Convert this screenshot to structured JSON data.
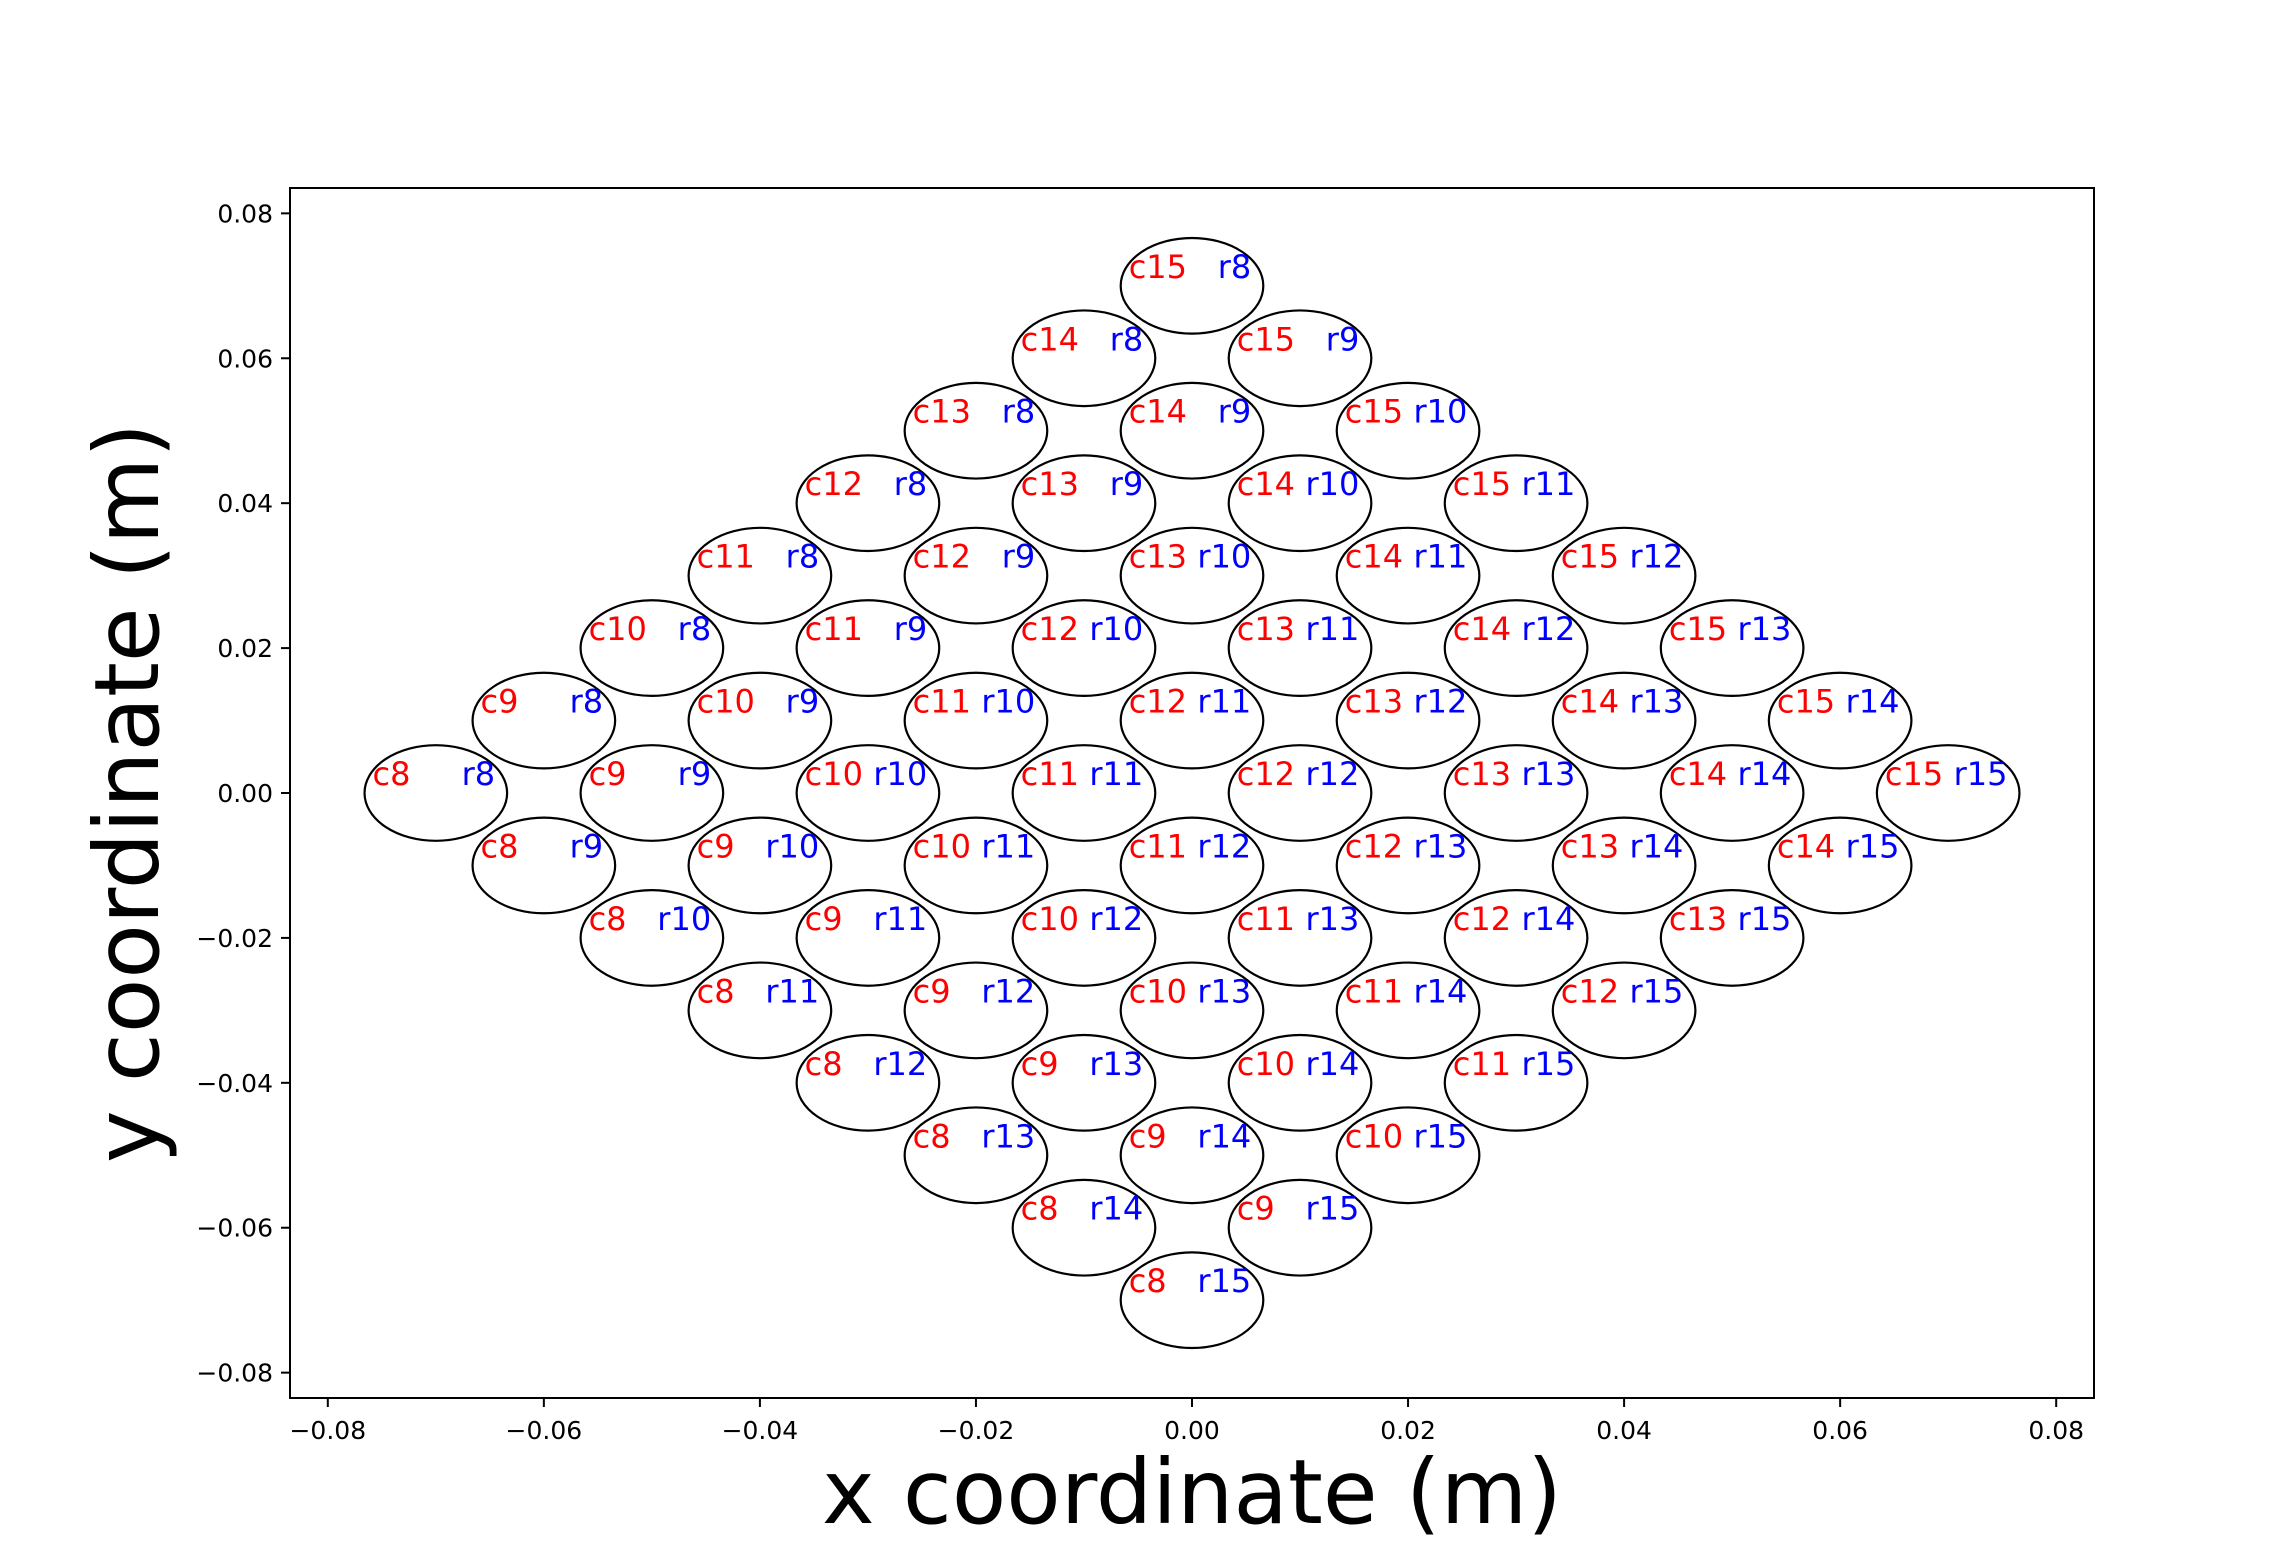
{
  "chart_data": {
    "type": "scatter",
    "title": "",
    "xlabel": "x coordinate (m)",
    "ylabel": "y coordinate (m)",
    "xlim": [
      -0.0835,
      0.0835
    ],
    "ylim": [
      -0.0835,
      0.0835
    ],
    "x_ticks": [
      -0.08,
      -0.06,
      -0.04,
      -0.02,
      0.0,
      0.02,
      0.04,
      0.06,
      0.08
    ],
    "x_tick_labels": [
      "−0.08",
      "−0.06",
      "−0.04",
      "−0.02",
      "0.00",
      "0.02",
      "0.04",
      "0.06",
      "0.08"
    ],
    "y_ticks": [
      0.08,
      0.06,
      0.04,
      0.02,
      0.0,
      -0.02,
      -0.04,
      -0.06,
      -0.08
    ],
    "y_tick_labels": [
      "0.08",
      "0.06",
      "0.04",
      "0.02",
      "0.00",
      "−0.02",
      "−0.04",
      "−0.06",
      "−0.08"
    ],
    "grid": false,
    "legend": "none",
    "cell_radius": 0.0066,
    "col_label_color": "#ff0000",
    "row_label_color": "#0000ff",
    "circle_color": "#000000",
    "cells": [
      {
        "col": "c15",
        "row": "r8",
        "x": 0.0,
        "y": 0.07
      },
      {
        "col": "c14",
        "row": "r8",
        "x": -0.01,
        "y": 0.06
      },
      {
        "col": "c15",
        "row": "r9",
        "x": 0.01,
        "y": 0.06
      },
      {
        "col": "c13",
        "row": "r8",
        "x": -0.02,
        "y": 0.05
      },
      {
        "col": "c14",
        "row": "r9",
        "x": 0.0,
        "y": 0.05
      },
      {
        "col": "c15",
        "row": "r10",
        "x": 0.02,
        "y": 0.05
      },
      {
        "col": "c12",
        "row": "r8",
        "x": -0.03,
        "y": 0.04
      },
      {
        "col": "c13",
        "row": "r9",
        "x": -0.01,
        "y": 0.04
      },
      {
        "col": "c14",
        "row": "r10",
        "x": 0.01,
        "y": 0.04
      },
      {
        "col": "c15",
        "row": "r11",
        "x": 0.03,
        "y": 0.04
      },
      {
        "col": "c11",
        "row": "r8",
        "x": -0.04,
        "y": 0.03
      },
      {
        "col": "c12",
        "row": "r9",
        "x": -0.02,
        "y": 0.03
      },
      {
        "col": "c13",
        "row": "r10",
        "x": 0.0,
        "y": 0.03
      },
      {
        "col": "c14",
        "row": "r11",
        "x": 0.02,
        "y": 0.03
      },
      {
        "col": "c15",
        "row": "r12",
        "x": 0.04,
        "y": 0.03
      },
      {
        "col": "c10",
        "row": "r8",
        "x": -0.05,
        "y": 0.02
      },
      {
        "col": "c11",
        "row": "r9",
        "x": -0.03,
        "y": 0.02
      },
      {
        "col": "c12",
        "row": "r10",
        "x": -0.01,
        "y": 0.02
      },
      {
        "col": "c13",
        "row": "r11",
        "x": 0.01,
        "y": 0.02
      },
      {
        "col": "c14",
        "row": "r12",
        "x": 0.03,
        "y": 0.02
      },
      {
        "col": "c15",
        "row": "r13",
        "x": 0.05,
        "y": 0.02
      },
      {
        "col": "c9",
        "row": "r8",
        "x": -0.06,
        "y": 0.01
      },
      {
        "col": "c10",
        "row": "r9",
        "x": -0.04,
        "y": 0.01
      },
      {
        "col": "c11",
        "row": "r10",
        "x": -0.02,
        "y": 0.01
      },
      {
        "col": "c12",
        "row": "r11",
        "x": 0.0,
        "y": 0.01
      },
      {
        "col": "c13",
        "row": "r12",
        "x": 0.02,
        "y": 0.01
      },
      {
        "col": "c14",
        "row": "r13",
        "x": 0.04,
        "y": 0.01
      },
      {
        "col": "c15",
        "row": "r14",
        "x": 0.06,
        "y": 0.01
      },
      {
        "col": "c8",
        "row": "r8",
        "x": -0.07,
        "y": 0.0
      },
      {
        "col": "c9",
        "row": "r9",
        "x": -0.05,
        "y": 0.0
      },
      {
        "col": "c10",
        "row": "r10",
        "x": -0.03,
        "y": 0.0
      },
      {
        "col": "c11",
        "row": "r11",
        "x": -0.01,
        "y": 0.0
      },
      {
        "col": "c12",
        "row": "r12",
        "x": 0.01,
        "y": 0.0
      },
      {
        "col": "c13",
        "row": "r13",
        "x": 0.03,
        "y": 0.0
      },
      {
        "col": "c14",
        "row": "r14",
        "x": 0.05,
        "y": 0.0
      },
      {
        "col": "c15",
        "row": "r15",
        "x": 0.07,
        "y": 0.0
      },
      {
        "col": "c8",
        "row": "r9",
        "x": -0.06,
        "y": -0.01
      },
      {
        "col": "c9",
        "row": "r10",
        "x": -0.04,
        "y": -0.01
      },
      {
        "col": "c10",
        "row": "r11",
        "x": -0.02,
        "y": -0.01
      },
      {
        "col": "c11",
        "row": "r12",
        "x": 0.0,
        "y": -0.01
      },
      {
        "col": "c12",
        "row": "r13",
        "x": 0.02,
        "y": -0.01
      },
      {
        "col": "c13",
        "row": "r14",
        "x": 0.04,
        "y": -0.01
      },
      {
        "col": "c14",
        "row": "r15",
        "x": 0.06,
        "y": -0.01
      },
      {
        "col": "c8",
        "row": "r10",
        "x": -0.05,
        "y": -0.02
      },
      {
        "col": "c9",
        "row": "r11",
        "x": -0.03,
        "y": -0.02
      },
      {
        "col": "c10",
        "row": "r12",
        "x": -0.01,
        "y": -0.02
      },
      {
        "col": "c11",
        "row": "r13",
        "x": 0.01,
        "y": -0.02
      },
      {
        "col": "c12",
        "row": "r14",
        "x": 0.03,
        "y": -0.02
      },
      {
        "col": "c13",
        "row": "r15",
        "x": 0.05,
        "y": -0.02
      },
      {
        "col": "c8",
        "row": "r11",
        "x": -0.04,
        "y": -0.03
      },
      {
        "col": "c9",
        "row": "r12",
        "x": -0.02,
        "y": -0.03
      },
      {
        "col": "c10",
        "row": "r13",
        "x": 0.0,
        "y": -0.03
      },
      {
        "col": "c11",
        "row": "r14",
        "x": 0.02,
        "y": -0.03
      },
      {
        "col": "c12",
        "row": "r15",
        "x": 0.04,
        "y": -0.03
      },
      {
        "col": "c8",
        "row": "r12",
        "x": -0.03,
        "y": -0.04
      },
      {
        "col": "c9",
        "row": "r13",
        "x": -0.01,
        "y": -0.04
      },
      {
        "col": "c10",
        "row": "r14",
        "x": 0.01,
        "y": -0.04
      },
      {
        "col": "c11",
        "row": "r15",
        "x": 0.03,
        "y": -0.04
      },
      {
        "col": "c8",
        "row": "r13",
        "x": -0.02,
        "y": -0.05
      },
      {
        "col": "c9",
        "row": "r14",
        "x": 0.0,
        "y": -0.05
      },
      {
        "col": "c10",
        "row": "r15",
        "x": 0.02,
        "y": -0.05
      },
      {
        "col": "c8",
        "row": "r14",
        "x": -0.01,
        "y": -0.06
      },
      {
        "col": "c9",
        "row": "r15",
        "x": 0.01,
        "y": -0.06
      },
      {
        "col": "c8",
        "row": "r15",
        "x": 0.0,
        "y": -0.07
      }
    ]
  }
}
